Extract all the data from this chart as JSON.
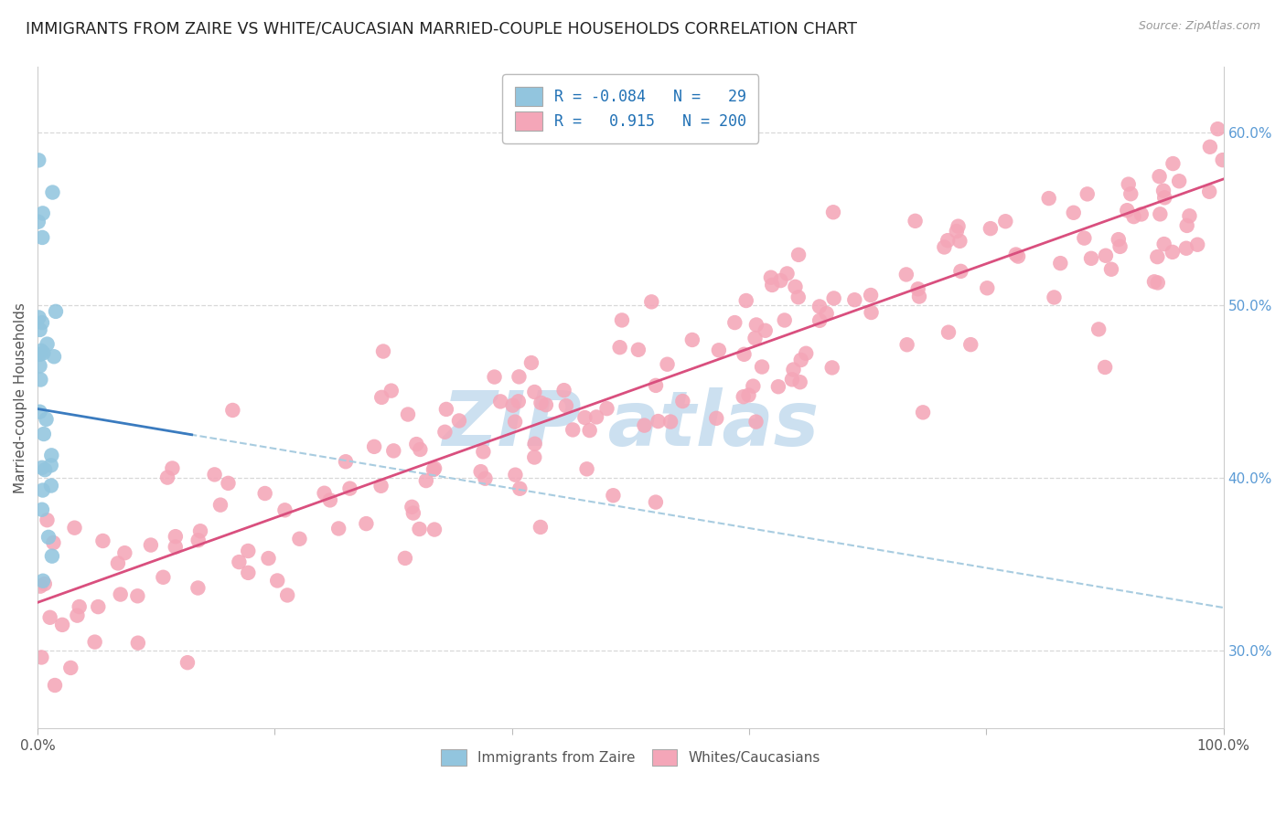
{
  "title": "IMMIGRANTS FROM ZAIRE VS WHITE/CAUCASIAN MARRIED-COUPLE HOUSEHOLDS CORRELATION CHART",
  "source": "Source: ZipAtlas.com",
  "ylabel": "Married-couple Households",
  "right_ytick_labels": [
    "30.0%",
    "40.0%",
    "50.0%",
    "60.0%"
  ],
  "right_ytick_values": [
    0.3,
    0.4,
    0.5,
    0.6
  ],
  "xlim": [
    0.0,
    1.0
  ],
  "ylim": [
    0.255,
    0.638
  ],
  "blue_R": -0.084,
  "blue_N": 29,
  "pink_R": 0.915,
  "pink_N": 200,
  "blue_color": "#92c5de",
  "pink_color": "#f4a6b8",
  "blue_line_color": "#3a7bbf",
  "pink_line_color": "#d94f7e",
  "blue_dashed_color": "#a8cce0",
  "legend_label_blue": "Immigrants from Zaire",
  "legend_label_pink": "Whites/Caucasians",
  "watermark_color": "#cce0f0",
  "background_color": "#ffffff",
  "grid_color": "#d8d8d8",
  "title_fontsize": 12.5,
  "axis_label_fontsize": 11,
  "tick_fontsize": 11,
  "blue_line_y0": 0.44,
  "blue_line_slope": -0.115,
  "pink_line_y0": 0.328,
  "pink_line_slope": 0.245
}
